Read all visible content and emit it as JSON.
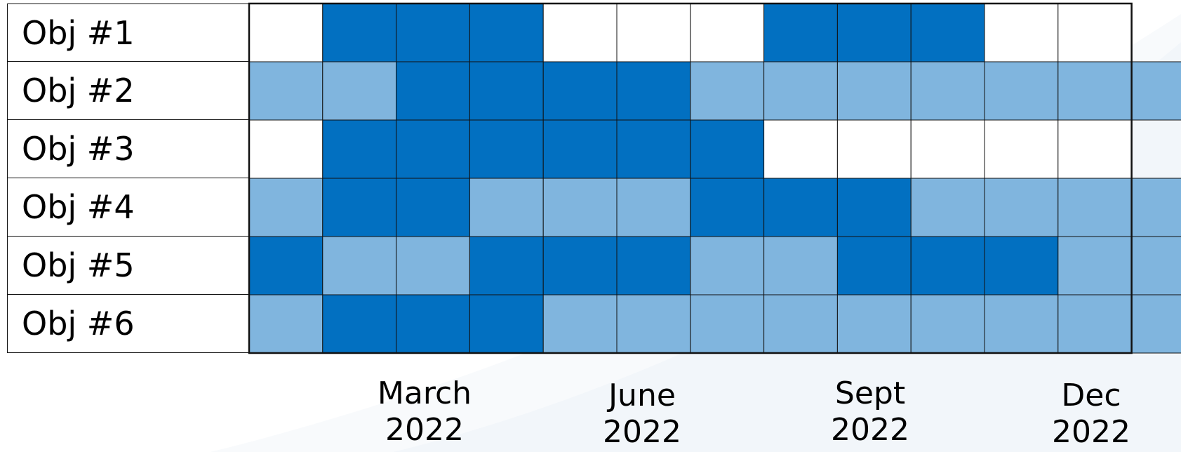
{
  "rows": [
    {
      "label": "Obj #1",
      "levels": [
        "white",
        "dark",
        "dark",
        "dark",
        "white",
        "white",
        "white",
        "dark",
        "dark",
        "dark",
        "white",
        "white"
      ]
    },
    {
      "label": "Obj #2",
      "levels": [
        "light",
        "light",
        "dark",
        "dark",
        "dark",
        "dark",
        "light",
        "light",
        "light",
        "light",
        "light",
        "light",
        "light"
      ]
    },
    {
      "label": "Obj #3",
      "levels": [
        "white",
        "dark",
        "dark",
        "dark",
        "dark",
        "dark",
        "dark",
        "white",
        "white",
        "white",
        "white",
        "white"
      ]
    },
    {
      "label": "Obj #4",
      "levels": [
        "light",
        "dark",
        "dark",
        "light",
        "light",
        "light",
        "dark",
        "dark",
        "dark",
        "light",
        "light",
        "light",
        "light"
      ]
    },
    {
      "label": "Obj #5",
      "levels": [
        "dark",
        "light",
        "light",
        "dark",
        "dark",
        "dark",
        "light",
        "light",
        "dark",
        "dark",
        "dark",
        "light",
        "light"
      ]
    },
    {
      "label": "Obj #6",
      "levels": [
        "light",
        "dark",
        "dark",
        "dark",
        "light",
        "light",
        "light",
        "light",
        "light",
        "light",
        "light",
        "light",
        "light"
      ]
    }
  ],
  "axis": {
    "march": {
      "month": "March",
      "year": "2022"
    },
    "june": {
      "month": "June",
      "year": "2022"
    },
    "sept": {
      "month": "Sept",
      "year": "2022"
    },
    "dec": {
      "month": "Dec",
      "year": "2022"
    }
  },
  "colors": {
    "dark": "#0270c1",
    "light": "#80b5de",
    "white": "#ffffff",
    "grid": "#111111",
    "swoosh": "#eef3f8"
  }
}
